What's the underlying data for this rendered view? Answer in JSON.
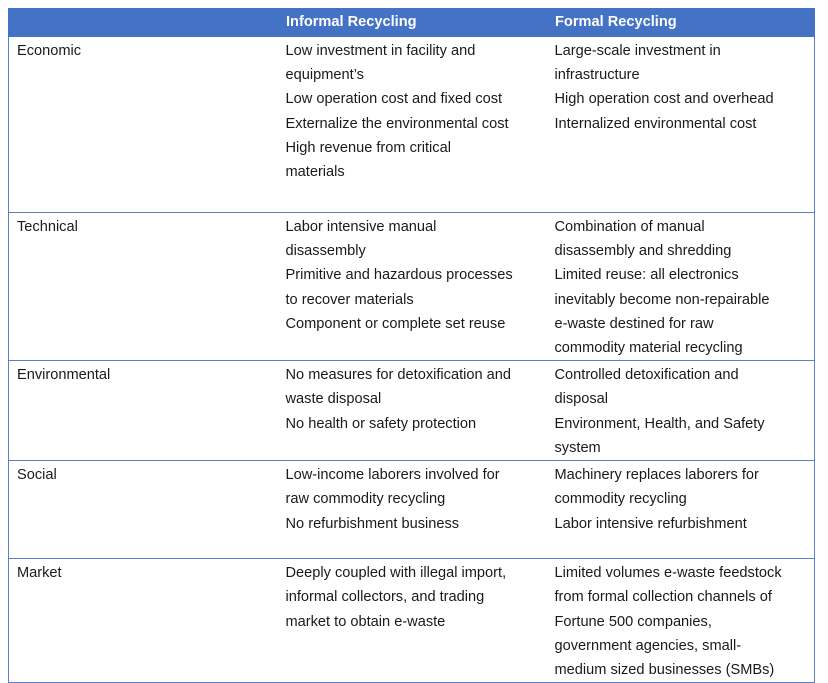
{
  "table": {
    "headers": [
      "",
      "Informal Recycling",
      "Formal Recycling"
    ],
    "rows": [
      {
        "category": "Economic",
        "informal": [
          "Low investment in facility and",
          "equipment’s",
          "Low operation cost and fixed cost",
          "Externalize the environmental cost",
          "High revenue from critical",
          "materials"
        ],
        "formal": [
          "Large-scale investment in",
          "infrastructure",
          "High operation cost and overhead",
          "Internalized environmental cost"
        ]
      },
      {
        "category": "Technical",
        "informal": [
          "Labor intensive manual",
          "disassembly",
          "Primitive and hazardous processes",
          "to recover materials",
          "Component or complete set reuse"
        ],
        "formal": [
          "Combination of manual",
          "disassembly and shredding",
          "Limited reuse: all electronics",
          "inevitably become non-repairable",
          "e-waste destined for raw",
          "commodity material recycling"
        ]
      },
      {
        "category": "Environmental",
        "informal": [
          "No measures for detoxification and",
          "waste disposal",
          "No health or safety protection"
        ],
        "formal": [
          "Controlled detoxification and",
          "disposal",
          "Environment, Health, and Safety",
          "system"
        ]
      },
      {
        "category": "Social",
        "informal": [
          "Low-income laborers involved for",
          "raw commodity recycling",
          "No refurbishment business"
        ],
        "formal": [
          "Machinery replaces laborers for",
          "commodity recycling",
          "Labor intensive refurbishment"
        ]
      },
      {
        "category": "Market",
        "informal": [
          "Deeply coupled with illegal import,",
          "informal collectors, and trading",
          "market to obtain e-waste"
        ],
        "formal": [
          "Limited volumes e-waste feedstock",
          "from formal collection channels of",
          "Fortune 500 companies,",
          "government agencies, small-",
          "medium sized businesses (SMBs)"
        ]
      }
    ]
  }
}
